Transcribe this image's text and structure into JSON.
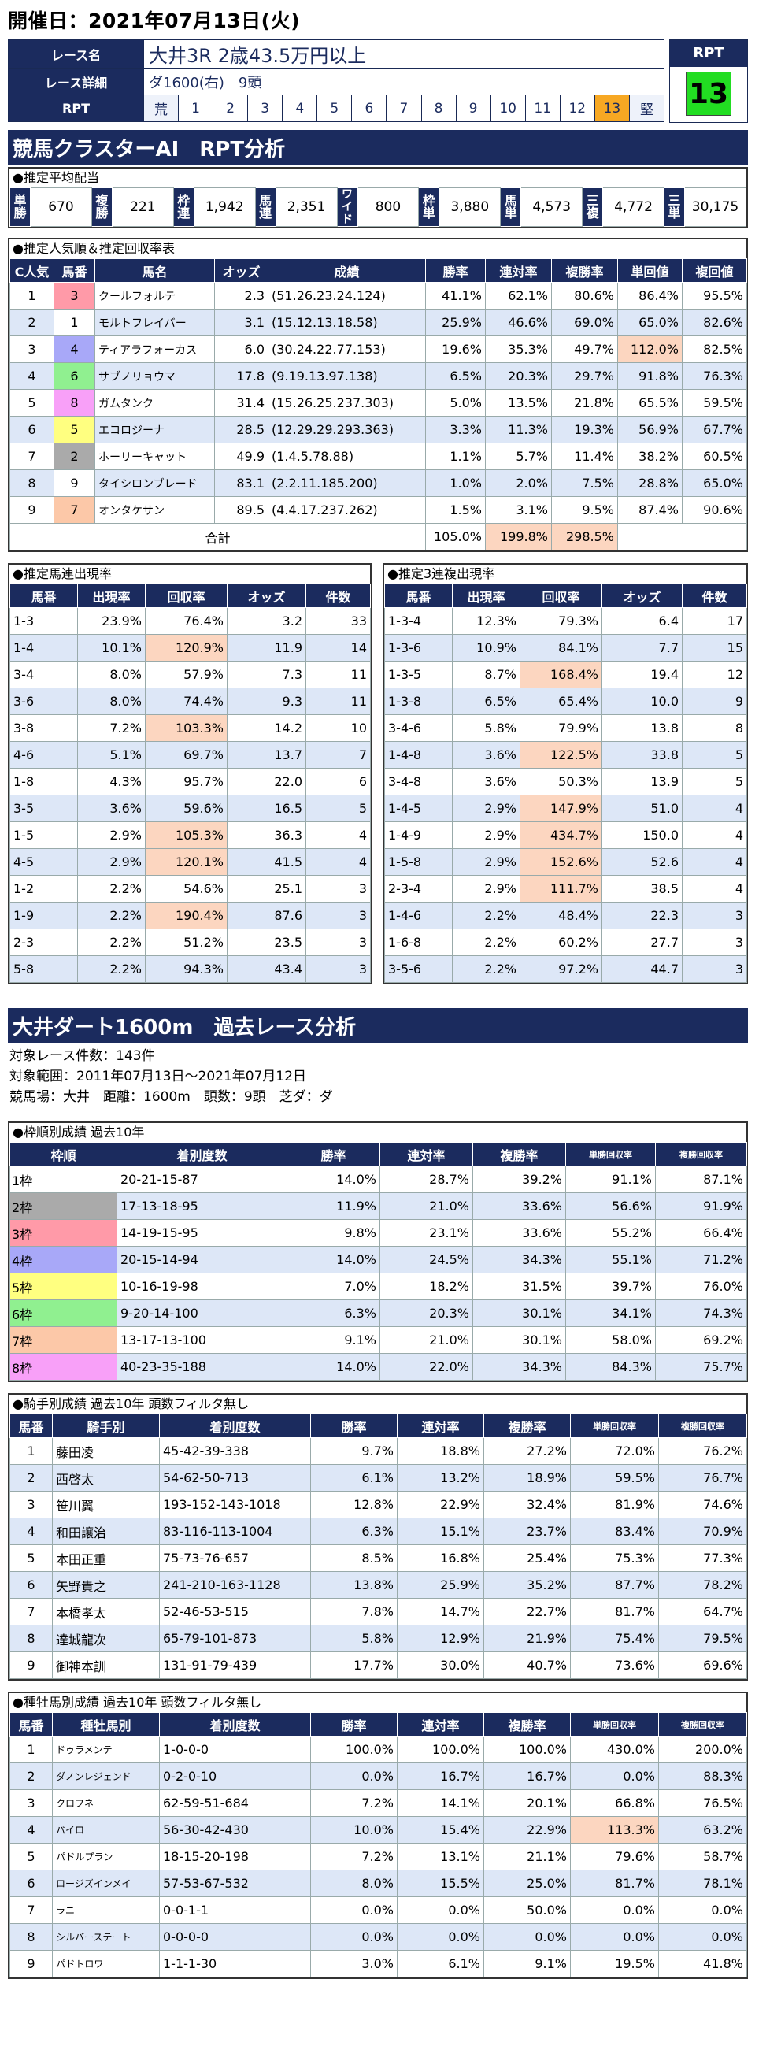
{
  "date": "開催日：2021年07月13日(火)",
  "race": {
    "name_label": "レース名",
    "name": "大井3R 2歳43.5万円以上",
    "detail_label": "レース詳細",
    "detail": "ダ1600(右)　9頭",
    "rpt_label": "RPT",
    "scale": [
      "荒",
      "1",
      "2",
      "3",
      "4",
      "5",
      "6",
      "7",
      "8",
      "9",
      "10",
      "11",
      "12",
      "13",
      "堅"
    ],
    "rpt_head": "RPT",
    "rpt_value": "13"
  },
  "s1_title": "競馬クラスターAI　RPT分析",
  "payout": {
    "title": "●推定平均配当",
    "items": [
      [
        "単勝",
        "670"
      ],
      [
        "複勝",
        "221"
      ],
      [
        "枠連",
        "1,942"
      ],
      [
        "馬連",
        "2,351"
      ],
      [
        "ワイド",
        "800"
      ],
      [
        "枠単",
        "3,880"
      ],
      [
        "馬単",
        "4,573"
      ],
      [
        "三複",
        "4,772"
      ],
      [
        "三単",
        "30,175"
      ]
    ]
  },
  "pop": {
    "title": "●推定人気順＆推定回収率表",
    "headers": [
      "C人気",
      "馬番",
      "馬名",
      "オッズ",
      "成績",
      "勝率",
      "連対率",
      "複勝率",
      "単回値",
      "複回値"
    ],
    "rows": [
      [
        "1",
        "3",
        "クールフォルテ",
        "2.3",
        "(51.26.23.24.124)",
        "41.1%",
        "62.1%",
        "80.6%",
        "86.4%",
        "95.5%"
      ],
      [
        "2",
        "1",
        "モルトフレイバー",
        "3.1",
        "(15.12.13.18.58)",
        "25.9%",
        "46.6%",
        "69.0%",
        "65.0%",
        "82.6%"
      ],
      [
        "3",
        "4",
        "ティアラフォーカス",
        "6.0",
        "(30.24.22.77.153)",
        "19.6%",
        "35.3%",
        "49.7%",
        "112.0%",
        "82.5%"
      ],
      [
        "4",
        "6",
        "サブノリョウマ",
        "17.8",
        "(9.19.13.97.138)",
        "6.5%",
        "20.3%",
        "29.7%",
        "91.8%",
        "76.3%"
      ],
      [
        "5",
        "8",
        "ガムタンク",
        "31.4",
        "(15.26.25.237.303)",
        "5.0%",
        "13.5%",
        "21.8%",
        "65.5%",
        "59.5%"
      ],
      [
        "6",
        "5",
        "エコロジーナ",
        "28.5",
        "(12.29.29.293.363)",
        "3.3%",
        "11.3%",
        "19.3%",
        "56.9%",
        "67.7%"
      ],
      [
        "7",
        "2",
        "ホーリーキャット",
        "49.9",
        "(1.4.5.78.88)",
        "1.1%",
        "5.7%",
        "11.4%",
        "38.2%",
        "60.5%"
      ],
      [
        "8",
        "9",
        "タイシロンブレード",
        "83.1",
        "(2.2.11.185.200)",
        "1.0%",
        "2.0%",
        "7.5%",
        "28.8%",
        "65.0%"
      ],
      [
        "9",
        "7",
        "オンタケサン",
        "89.5",
        "(4.4.17.237.262)",
        "1.5%",
        "3.1%",
        "9.5%",
        "87.4%",
        "90.6%"
      ]
    ],
    "total_label": "合計",
    "total": [
      "105.0%",
      "199.8%",
      "298.5%"
    ]
  },
  "umaren": {
    "title": "●推定馬連出現率",
    "headers": [
      "馬番",
      "出現率",
      "回収率",
      "オッズ",
      "件数"
    ],
    "rows": [
      [
        "1-3",
        "23.9%",
        "76.4%",
        "3.2",
        "33"
      ],
      [
        "1-4",
        "10.1%",
        "120.9%",
        "11.9",
        "14"
      ],
      [
        "3-4",
        "8.0%",
        "57.9%",
        "7.3",
        "11"
      ],
      [
        "3-6",
        "8.0%",
        "74.4%",
        "9.3",
        "11"
      ],
      [
        "3-8",
        "7.2%",
        "103.3%",
        "14.2",
        "10"
      ],
      [
        "4-6",
        "5.1%",
        "69.7%",
        "13.7",
        "7"
      ],
      [
        "1-8",
        "4.3%",
        "95.7%",
        "22.0",
        "6"
      ],
      [
        "3-5",
        "3.6%",
        "59.6%",
        "16.5",
        "5"
      ],
      [
        "1-5",
        "2.9%",
        "105.3%",
        "36.3",
        "4"
      ],
      [
        "4-5",
        "2.9%",
        "120.1%",
        "41.5",
        "4"
      ],
      [
        "1-2",
        "2.2%",
        "54.6%",
        "25.1",
        "3"
      ],
      [
        "1-9",
        "2.2%",
        "190.4%",
        "87.6",
        "3"
      ],
      [
        "2-3",
        "2.2%",
        "51.2%",
        "23.5",
        "3"
      ],
      [
        "5-8",
        "2.2%",
        "94.3%",
        "43.4",
        "3"
      ]
    ]
  },
  "sanren": {
    "title": "●推定3連複出現率",
    "headers": [
      "馬番",
      "出現率",
      "回収率",
      "オッズ",
      "件数"
    ],
    "rows": [
      [
        "1-3-4",
        "12.3%",
        "79.3%",
        "6.4",
        "17"
      ],
      [
        "1-3-6",
        "10.9%",
        "84.1%",
        "7.7",
        "15"
      ],
      [
        "1-3-5",
        "8.7%",
        "168.4%",
        "19.4",
        "12"
      ],
      [
        "1-3-8",
        "6.5%",
        "65.4%",
        "10.0",
        "9"
      ],
      [
        "3-4-6",
        "5.8%",
        "79.9%",
        "13.8",
        "8"
      ],
      [
        "1-4-8",
        "3.6%",
        "122.5%",
        "33.8",
        "5"
      ],
      [
        "3-4-8",
        "3.6%",
        "50.3%",
        "13.9",
        "5"
      ],
      [
        "1-4-5",
        "2.9%",
        "147.9%",
        "51.0",
        "4"
      ],
      [
        "1-4-9",
        "2.9%",
        "434.7%",
        "150.0",
        "4"
      ],
      [
        "1-5-8",
        "2.9%",
        "152.6%",
        "52.6",
        "4"
      ],
      [
        "2-3-4",
        "2.9%",
        "111.7%",
        "38.5",
        "4"
      ],
      [
        "1-4-6",
        "2.2%",
        "48.4%",
        "22.3",
        "3"
      ],
      [
        "1-6-8",
        "2.2%",
        "60.2%",
        "27.7",
        "3"
      ],
      [
        "3-5-6",
        "2.2%",
        "97.2%",
        "44.7",
        "3"
      ]
    ]
  },
  "s2_title": "大井ダート1600m　過去レース分析",
  "info": [
    "対象レース件数：143件",
    "対象範囲：2011年07月13日～2021年07月12日",
    "競馬場：大井　距離：1600m　頭数：9頭　芝ダ：ダ"
  ],
  "waku": {
    "title": "●枠順別成績 過去10年",
    "headers": [
      "枠順",
      "着別度数",
      "勝率",
      "連対率",
      "複勝率",
      "単勝回収率",
      "複勝回収率"
    ],
    "rows": [
      [
        "1枠",
        "20-21-15-87",
        "14.0%",
        "28.7%",
        "39.2%",
        "91.1%",
        "87.1%"
      ],
      [
        "2枠",
        "17-13-18-95",
        "11.9%",
        "21.0%",
        "33.6%",
        "56.6%",
        "91.9%"
      ],
      [
        "3枠",
        "14-19-15-95",
        "9.8%",
        "23.1%",
        "33.6%",
        "55.2%",
        "66.4%"
      ],
      [
        "4枠",
        "20-15-14-94",
        "14.0%",
        "24.5%",
        "34.3%",
        "55.1%",
        "71.2%"
      ],
      [
        "5枠",
        "10-16-19-98",
        "7.0%",
        "18.2%",
        "31.5%",
        "39.7%",
        "76.0%"
      ],
      [
        "6枠",
        "9-20-14-100",
        "6.3%",
        "20.3%",
        "30.1%",
        "34.1%",
        "74.3%"
      ],
      [
        "7枠",
        "13-17-13-100",
        "9.1%",
        "21.0%",
        "30.1%",
        "58.0%",
        "69.2%"
      ],
      [
        "8枠",
        "40-23-35-188",
        "14.0%",
        "22.0%",
        "34.3%",
        "84.3%",
        "75.7%"
      ]
    ]
  },
  "jockey": {
    "title": "●騎手別成績 過去10年 頭数フィルタ無し",
    "headers": [
      "馬番",
      "騎手別",
      "着別度数",
      "勝率",
      "連対率",
      "複勝率",
      "単勝回収率",
      "複勝回収率"
    ],
    "rows": [
      [
        "1",
        "藤田凌",
        "45-42-39-338",
        "9.7%",
        "18.8%",
        "27.2%",
        "72.0%",
        "76.2%"
      ],
      [
        "2",
        "西啓太",
        "54-62-50-713",
        "6.1%",
        "13.2%",
        "18.9%",
        "59.5%",
        "76.7%"
      ],
      [
        "3",
        "笹川翼",
        "193-152-143-1018",
        "12.8%",
        "22.9%",
        "32.4%",
        "81.9%",
        "74.6%"
      ],
      [
        "4",
        "和田譲治",
        "83-116-113-1004",
        "6.3%",
        "15.1%",
        "23.7%",
        "83.4%",
        "70.9%"
      ],
      [
        "5",
        "本田正重",
        "75-73-76-657",
        "8.5%",
        "16.8%",
        "25.4%",
        "75.3%",
        "77.3%"
      ],
      [
        "6",
        "矢野貴之",
        "241-210-163-1128",
        "13.8%",
        "25.9%",
        "35.2%",
        "87.7%",
        "78.2%"
      ],
      [
        "7",
        "本橋孝太",
        "52-46-53-515",
        "7.8%",
        "14.7%",
        "22.7%",
        "81.7%",
        "64.7%"
      ],
      [
        "8",
        "達城龍次",
        "65-79-101-873",
        "5.8%",
        "12.9%",
        "21.9%",
        "75.4%",
        "79.5%"
      ],
      [
        "9",
        "御神本訓",
        "131-91-79-439",
        "17.7%",
        "30.0%",
        "40.7%",
        "73.6%",
        "69.6%"
      ]
    ]
  },
  "sire": {
    "title": "●種牡馬別成績 過去10年 頭数フィルタ無し",
    "headers": [
      "馬番",
      "種牡馬別",
      "着別度数",
      "勝率",
      "連対率",
      "複勝率",
      "単勝回収率",
      "複勝回収率"
    ],
    "rows": [
      [
        "1",
        "ドゥラメンテ",
        "1-0-0-0",
        "100.0%",
        "100.0%",
        "100.0%",
        "430.0%",
        "200.0%"
      ],
      [
        "2",
        "ダノンレジェンド",
        "0-2-0-10",
        "0.0%",
        "16.7%",
        "16.7%",
        "0.0%",
        "88.3%"
      ],
      [
        "3",
        "クロフネ",
        "62-59-51-684",
        "7.2%",
        "14.1%",
        "20.1%",
        "66.8%",
        "76.5%"
      ],
      [
        "4",
        "パイロ",
        "56-30-42-430",
        "10.0%",
        "15.4%",
        "22.9%",
        "113.3%",
        "63.2%"
      ],
      [
        "5",
        "パドルプラン",
        "18-15-20-198",
        "7.2%",
        "13.1%",
        "21.1%",
        "79.6%",
        "58.7%"
      ],
      [
        "6",
        "ロージズインメイ",
        "57-53-67-532",
        "8.0%",
        "15.5%",
        "25.0%",
        "81.7%",
        "78.1%"
      ],
      [
        "7",
        "ラニ",
        "0-0-1-1",
        "0.0%",
        "0.0%",
        "50.0%",
        "0.0%",
        "0.0%"
      ],
      [
        "8",
        "シルバーステート",
        "0-0-0-0",
        "0.0%",
        "0.0%",
        "0.0%",
        "0.0%",
        "0.0%"
      ],
      [
        "9",
        "パドトロワ",
        "1-1-1-30",
        "3.0%",
        "6.1%",
        "9.1%",
        "19.5%",
        "41.8%"
      ]
    ]
  },
  "colors": {
    "navy": "#1b2b5e",
    "hl": "#fcd6c0",
    "alt": "#dde7f7",
    "rpt13": "#f7a823",
    "rpt_green": "#22dd22"
  }
}
